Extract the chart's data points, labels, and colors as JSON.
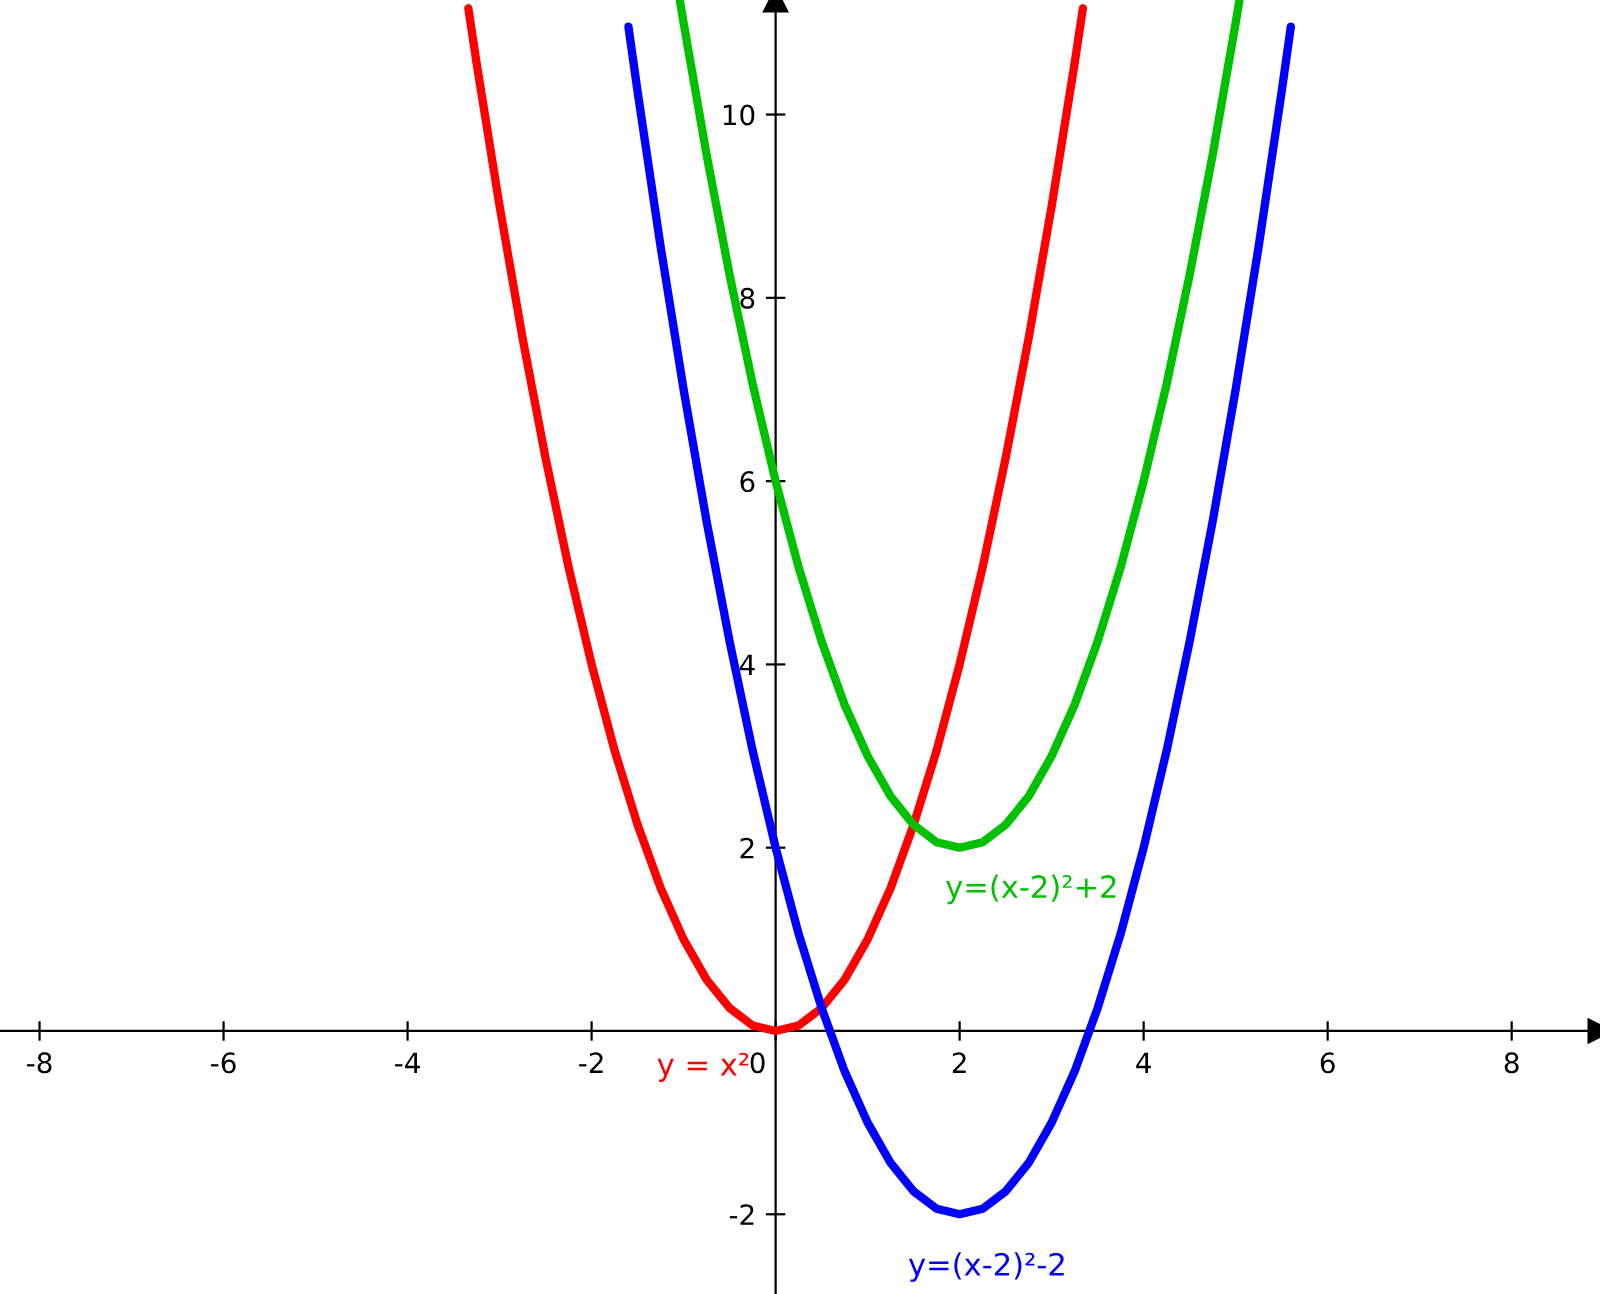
{
  "chart_data": {
    "type": "line",
    "xlim": [
      -8.43,
      8.96
    ],
    "ylim": [
      -2.87,
      11.25
    ],
    "xticks": [
      -8,
      -6,
      -4,
      -2,
      0,
      2,
      4,
      6,
      8
    ],
    "yticks": [
      -2,
      2,
      4,
      6,
      8,
      10
    ],
    "grid": false,
    "legend": false,
    "marker": "none",
    "line_style": "solid",
    "series": [
      {
        "name": "y = x²",
        "color": "#ff0000",
        "x": [
          -3.34,
          -3.25,
          -3,
          -2.75,
          -2.5,
          -2.25,
          -2,
          -1.75,
          -1.5,
          -1.25,
          -1,
          -0.75,
          -0.5,
          -0.25,
          0,
          0.25,
          0.5,
          0.75,
          1,
          1.25,
          1.5,
          1.75,
          2,
          2.25,
          2.5,
          2.75,
          3,
          3.25,
          3.34
        ],
        "values": [
          11.16,
          10.56,
          9,
          7.56,
          6.25,
          5.06,
          4,
          3.06,
          2.25,
          1.56,
          1,
          0.56,
          0.25,
          0.06,
          0,
          0.06,
          0.25,
          0.56,
          1,
          1.56,
          2.25,
          3.06,
          4,
          5.06,
          6.25,
          7.56,
          9,
          10.56,
          11.16
        ]
      },
      {
        "name": "y=(x-2)²+2",
        "color": "#00c000",
        "x": [
          -1.04,
          -1,
          -0.75,
          -0.5,
          -0.25,
          0,
          0.25,
          0.5,
          0.75,
          1,
          1.25,
          1.5,
          1.75,
          2,
          2.25,
          2.5,
          2.75,
          3,
          3.25,
          3.5,
          3.75,
          4,
          4.25,
          4.5,
          4.75,
          5,
          5.04
        ],
        "values": [
          11.24,
          11,
          9.56,
          8.25,
          7.06,
          6,
          5.06,
          4.25,
          3.56,
          3,
          2.56,
          2.25,
          2.06,
          2,
          2.06,
          2.25,
          2.56,
          3,
          3.56,
          4.25,
          5.06,
          6,
          7.06,
          8.25,
          9.56,
          11,
          11.24
        ]
      },
      {
        "name": "y=(x-2)²-2",
        "color": "#0000ff",
        "x": [
          -1.6,
          -1.5,
          -1.25,
          -1,
          -0.75,
          -0.5,
          -0.25,
          0,
          0.25,
          0.5,
          0.75,
          1,
          1.25,
          1.5,
          1.75,
          2,
          2.25,
          2.5,
          2.75,
          3,
          3.25,
          3.5,
          3.75,
          4,
          4.25,
          4.5,
          4.75,
          5,
          5.25,
          5.5,
          5.6
        ],
        "values": [
          10.96,
          10.25,
          8.56,
          7,
          5.56,
          4.25,
          3.06,
          2,
          1.06,
          0.25,
          -0.44,
          -1,
          -1.44,
          -1.75,
          -1.94,
          -2,
          -1.94,
          -1.75,
          -1.44,
          -1,
          -0.44,
          0.25,
          1.06,
          2,
          3.06,
          4.25,
          5.56,
          7,
          8.56,
          10.25,
          10.96
        ]
      }
    ]
  }
}
